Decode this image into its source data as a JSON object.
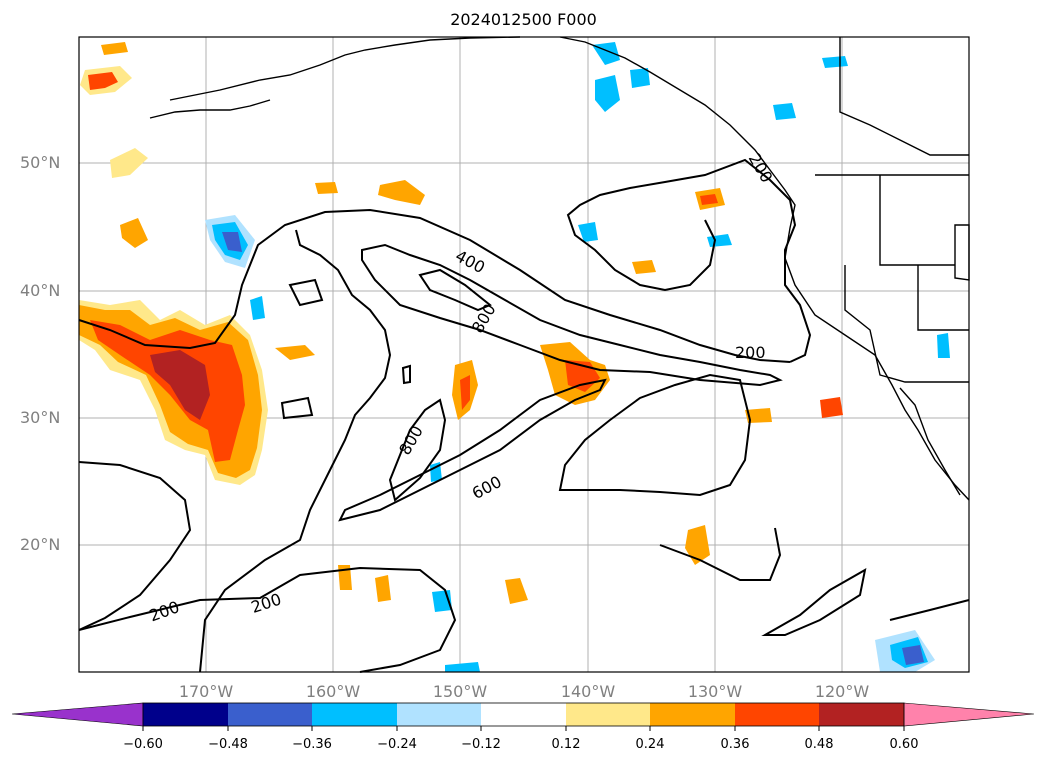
{
  "title": "2024012500 F000",
  "lat_labels": [
    "50°N",
    "40°N",
    "30°N",
    "20°N"
  ],
  "lon_labels": [
    "170°W",
    "160°W",
    "150°W",
    "140°W",
    "130°W",
    "120°W"
  ],
  "colorbar": {
    "ticks": [
      "−0.60",
      "−0.48",
      "−0.36",
      "−0.24",
      "−0.12",
      "0.12",
      "0.24",
      "0.36",
      "0.48",
      "0.60"
    ],
    "colors": [
      "#9932cc",
      "#00008b",
      "#3a5fcd",
      "#00bfff",
      "#b0e2ff",
      "#ffffff",
      "#ffe88a",
      "#ffa500",
      "#ff4500",
      "#b22222",
      "#ff82ab"
    ]
  },
  "contour_labels": [
    "200",
    "200",
    "200",
    "400",
    "800",
    "800",
    "600",
    "200"
  ]
}
